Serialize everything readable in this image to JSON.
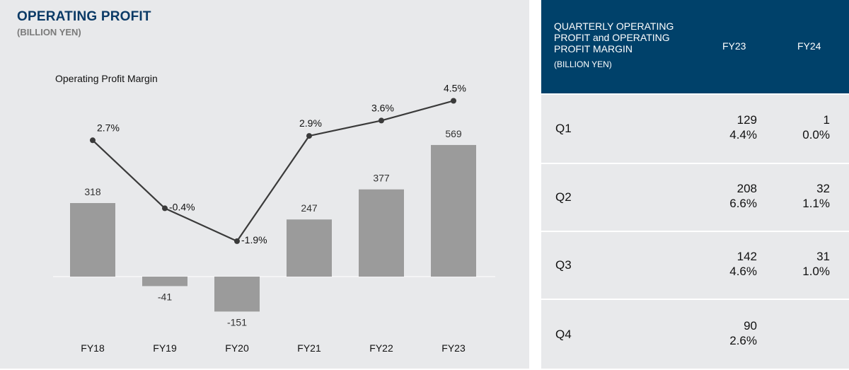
{
  "chart_data": {
    "type": "bar+line",
    "title": "OPERATING PROFIT",
    "subtitle": "(BILLION YEN)",
    "line_label": "Operating Profit Margin",
    "categories": [
      "FY18",
      "FY19",
      "FY20",
      "FY21",
      "FY22",
      "FY23"
    ],
    "series": [
      {
        "name": "Operating Profit",
        "type": "bar",
        "values": [
          318,
          -41,
          -151,
          247,
          377,
          569
        ],
        "labels": [
          "318",
          "-41",
          "-151",
          "247",
          "377",
          "569"
        ],
        "color": "#9b9b9b"
      },
      {
        "name": "Operating Profit Margin",
        "type": "line",
        "values": [
          2.7,
          -0.4,
          -1.9,
          2.9,
          3.6,
          4.5
        ],
        "labels": [
          "2.7%",
          "-0.4%",
          "-1.9%",
          "2.9%",
          "3.6%",
          "4.5%"
        ],
        "color": "#3a3a3a"
      }
    ]
  },
  "table": {
    "header": "QUARTERLY OPERATING PROFIT and OPERATING PROFIT MARGIN",
    "unit": "(BILLION YEN)",
    "columns": [
      "FY23",
      "FY24"
    ],
    "rows": [
      {
        "q": "Q1",
        "fy23": {
          "value": "129",
          "margin": "4.4%"
        },
        "fy24": {
          "value": "1",
          "margin": "0.0%"
        }
      },
      {
        "q": "Q2",
        "fy23": {
          "value": "208",
          "margin": "6.6%"
        },
        "fy24": {
          "value": "32",
          "margin": "1.1%"
        }
      },
      {
        "q": "Q3",
        "fy23": {
          "value": "142",
          "margin": "4.6%"
        },
        "fy24": {
          "value": "31",
          "margin": "1.0%"
        }
      },
      {
        "q": "Q4",
        "fy23": {
          "value": "90",
          "margin": "2.6%"
        },
        "fy24": {
          "value": "",
          "margin": ""
        }
      }
    ]
  },
  "colors": {
    "navy": "#00416a",
    "title": "#0b3a66",
    "bar": "#9b9b9b",
    "panel": "#e8e9eb"
  }
}
